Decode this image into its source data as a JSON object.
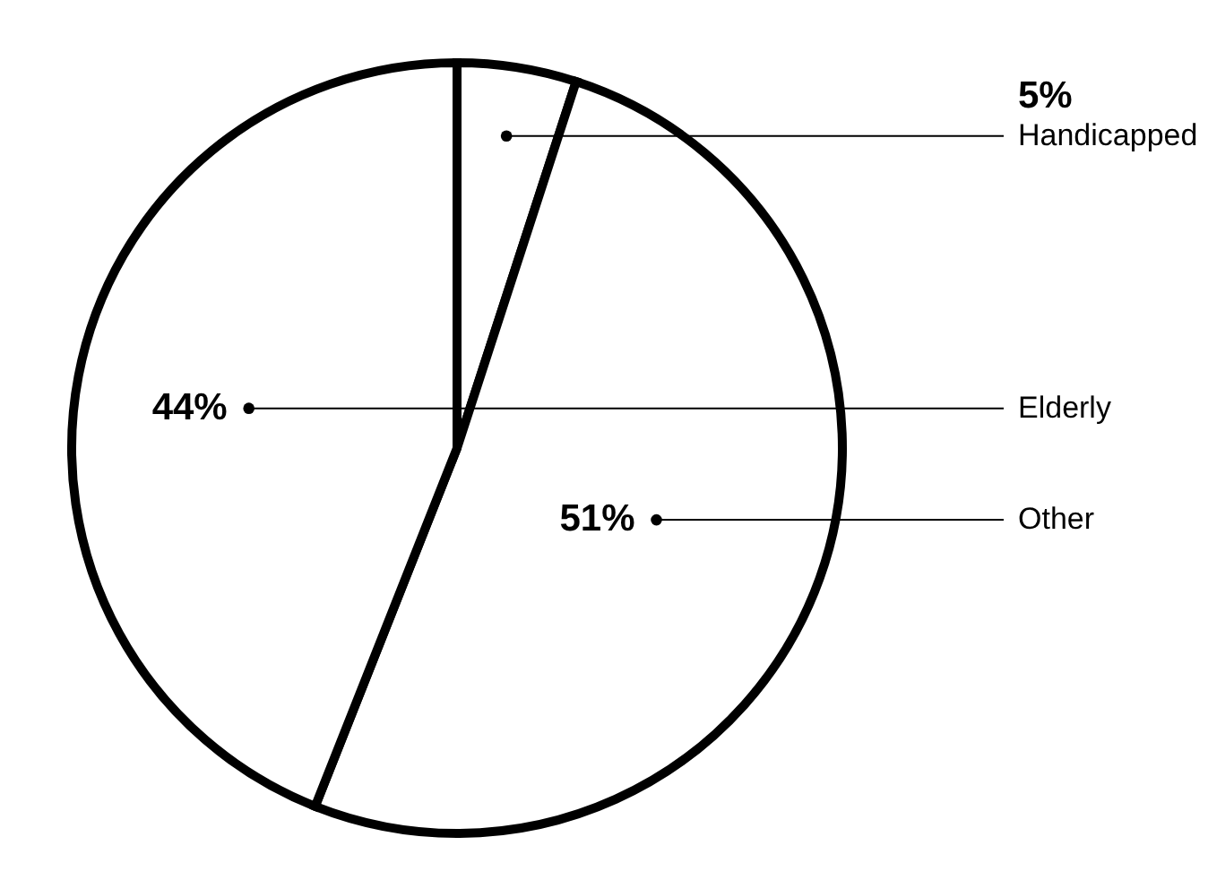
{
  "chart_data": {
    "type": "pie",
    "categories": [
      "Handicapped",
      "Other",
      "Elderly"
    ],
    "values": [
      5,
      51,
      44
    ],
    "value_labels": [
      "5%",
      "51%",
      "44%"
    ],
    "colors": [
      "#ffffff",
      "#ffffff",
      "#ffffff"
    ]
  }
}
